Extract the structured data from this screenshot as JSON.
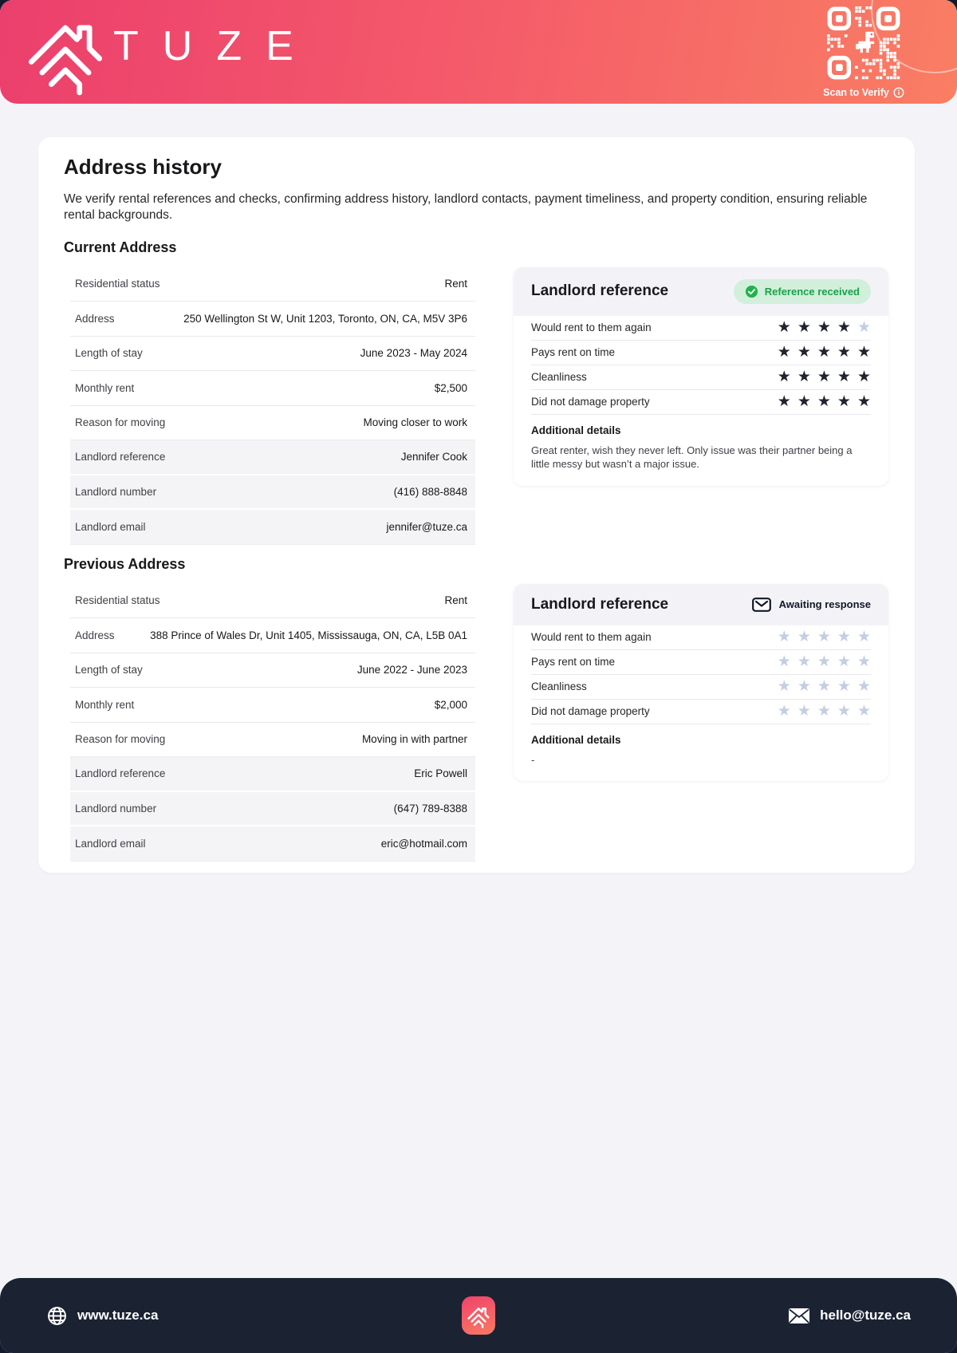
{
  "header": {
    "brand": "TUZE",
    "scan_label": "Scan to Verify"
  },
  "page": {
    "title": "Address history",
    "description": "We verify rental references and checks, confirming address history, landlord contacts, payment timeliness, and property condition, ensuring reliable rental backgrounds."
  },
  "sections": [
    {
      "heading": "Current Address",
      "rows": [
        {
          "label": "Residential status",
          "value": "Rent",
          "highlight": false
        },
        {
          "label": "Address",
          "value": "250 Wellington St W, Unit 1203, Toronto, ON, CA, M5V 3P6",
          "highlight": false
        },
        {
          "label": "Length of stay",
          "value": "June 2023 - May 2024",
          "highlight": false
        },
        {
          "label": "Monthly rent",
          "value": "$2,500",
          "highlight": false
        },
        {
          "label": "Reason for moving",
          "value": "Moving closer to work",
          "highlight": false
        },
        {
          "label": "Landlord reference",
          "value": "Jennifer Cook",
          "highlight": true
        },
        {
          "label": "Landlord number",
          "value": "(416) 888-8848",
          "highlight": true
        },
        {
          "label": "Landlord email",
          "value": "jennifer@tuze.ca",
          "highlight": true
        }
      ],
      "reference": {
        "title": "Landlord reference",
        "status": "received",
        "status_label": "Reference received",
        "ratings": [
          {
            "label": "Would rent to them again",
            "value": 4,
            "max": 5
          },
          {
            "label": "Pays rent on time",
            "value": 5,
            "max": 5
          },
          {
            "label": "Cleanliness",
            "value": 5,
            "max": 5
          },
          {
            "label": "Did not damage property",
            "value": 5,
            "max": 5
          }
        ],
        "details_heading": "Additional details",
        "details_text": "Great renter, wish they never left. Only issue was their partner being a little messy but wasn’t a major issue."
      }
    },
    {
      "heading": "Previous Address",
      "rows": [
        {
          "label": "Residential status",
          "value": "Rent",
          "highlight": false
        },
        {
          "label": "Address",
          "value": "388 Prince of Wales Dr, Unit 1405, Mississauga, ON, CA, L5B 0A1",
          "highlight": false
        },
        {
          "label": "Length of stay",
          "value": "June 2022 - June 2023",
          "highlight": false
        },
        {
          "label": "Monthly rent",
          "value": "$2,000",
          "highlight": false
        },
        {
          "label": "Reason for moving",
          "value": "Moving in with partner",
          "highlight": false
        },
        {
          "label": "Landlord reference",
          "value": "Eric Powell",
          "highlight": true
        },
        {
          "label": "Landlord number",
          "value": "(647) 789-8388",
          "highlight": true
        },
        {
          "label": "Landlord email",
          "value": "eric@hotmail.com",
          "highlight": true
        }
      ],
      "reference": {
        "title": "Landlord reference",
        "status": "awaiting",
        "status_label": "Awaiting response",
        "ratings": [
          {
            "label": "Would rent to them again",
            "value": 0,
            "max": 5
          },
          {
            "label": "Pays rent on time",
            "value": 0,
            "max": 5
          },
          {
            "label": "Cleanliness",
            "value": 0,
            "max": 5
          },
          {
            "label": "Did not damage property",
            "value": 0,
            "max": 5
          }
        ],
        "details_heading": "Additional details",
        "details_text": "-"
      }
    }
  ],
  "footer": {
    "website": "www.tuze.ca",
    "email": "hello@tuze.ca"
  },
  "icons": {
    "star_glyph": "★"
  },
  "colors": {
    "accent_pink": "#EB3F6D",
    "accent_salmon": "#F97E63",
    "footer_navy": "#1B2333",
    "badge_green_text": "#17A34A",
    "badge_green_bg": "#D2EFDB",
    "star_filled": "#20242E",
    "star_empty": "#C3CEE2"
  }
}
